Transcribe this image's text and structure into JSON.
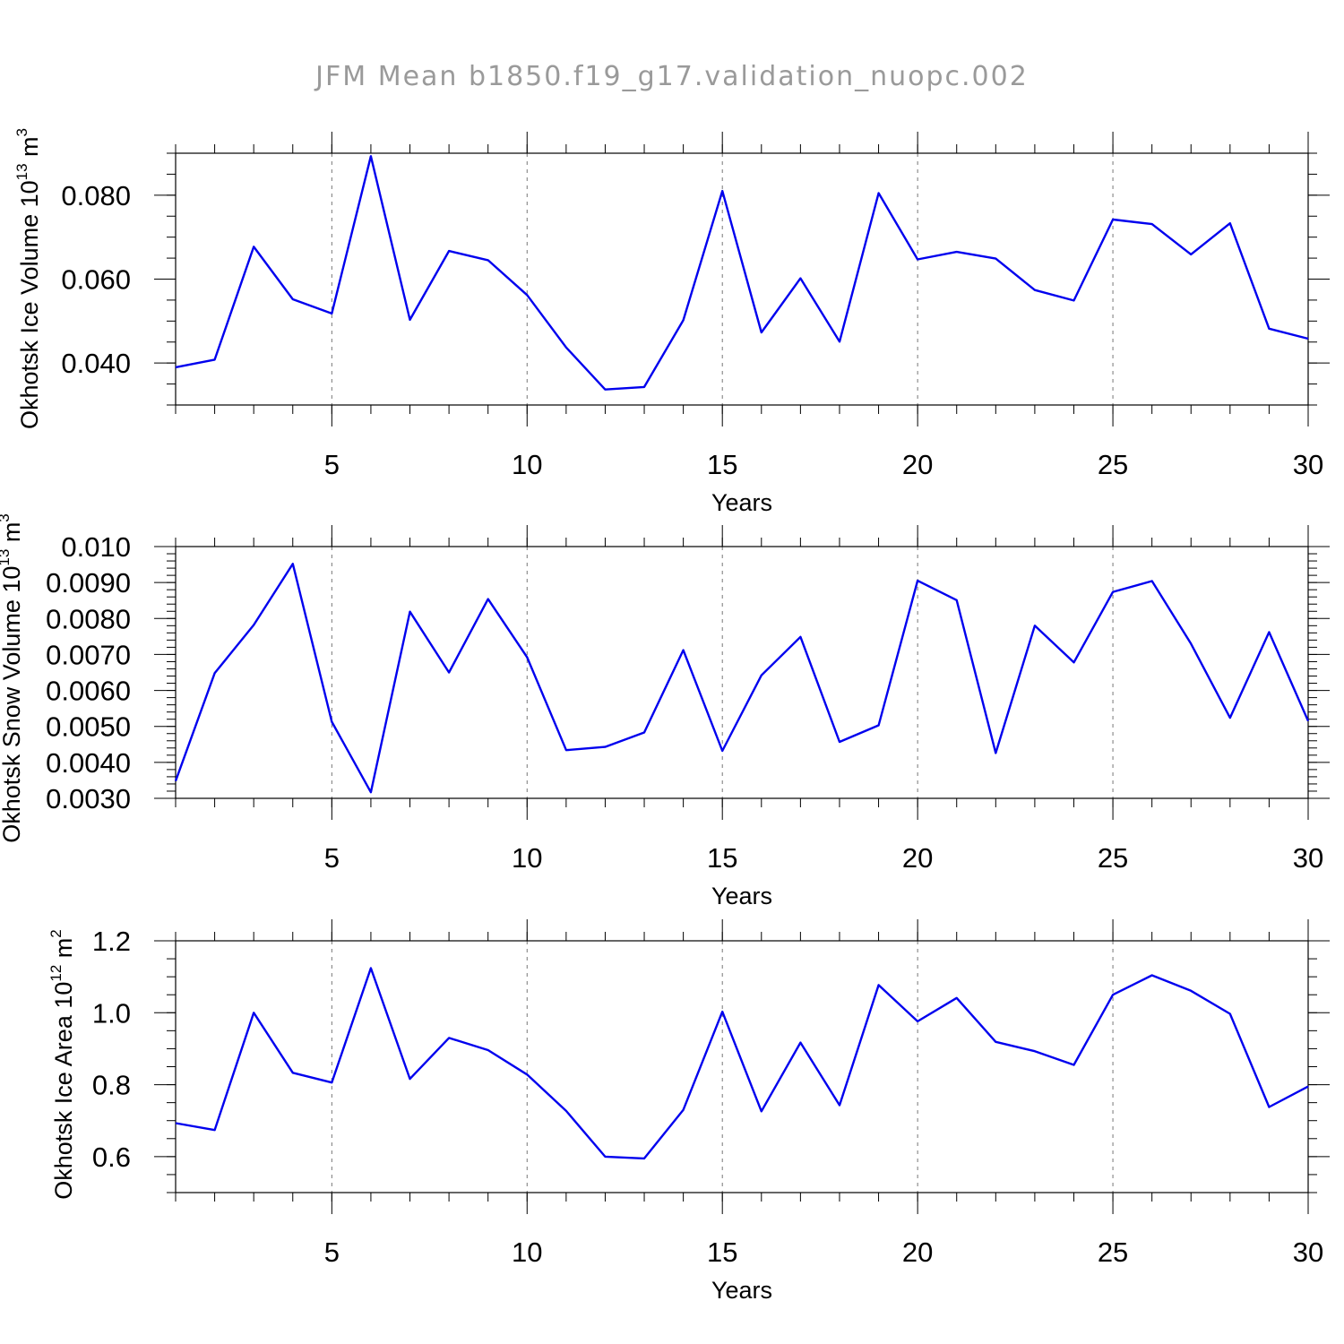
{
  "title": "JFM Mean b1850.f19_g17.validation_nuopc.002",
  "chart_data": [
    {
      "type": "line",
      "ylabel_prefix": "Okhotsk Ice Volume 10",
      "ylabel_exp": "13",
      "ylabel_unit": " m",
      "ylabel_unit_exp": "3",
      "xlabel": "Years",
      "xlim": [
        1,
        30
      ],
      "ylim": [
        0.03,
        0.09
      ],
      "x_ticks": [
        5,
        10,
        15,
        20,
        25,
        30
      ],
      "x_tick_labels": [
        "5",
        "10",
        "15",
        "20",
        "25",
        "30"
      ],
      "y_ticks": [
        0.04,
        0.06,
        0.08
      ],
      "y_tick_labels": [
        "0.040",
        "0.060",
        "0.080"
      ],
      "y_minor_step": 0.005,
      "x": [
        1,
        2,
        3,
        4,
        5,
        6,
        7,
        8,
        9,
        10,
        11,
        12,
        13,
        14,
        15,
        16,
        17,
        18,
        19,
        20,
        21,
        22,
        23,
        24,
        25,
        26,
        27,
        28,
        29,
        30
      ],
      "values": [
        0.039,
        0.0408,
        0.0677,
        0.0552,
        0.0518,
        0.0893,
        0.0503,
        0.0667,
        0.0645,
        0.0562,
        0.0437,
        0.0337,
        0.0343,
        0.0502,
        0.081,
        0.0473,
        0.0602,
        0.0451,
        0.0805,
        0.0647,
        0.0665,
        0.0649,
        0.0574,
        0.0549,
        0.0742,
        0.0731,
        0.0659,
        0.0733,
        0.0482,
        0.0458
      ],
      "line_color": "#0000ee"
    },
    {
      "type": "line",
      "ylabel_prefix": "Okhotsk Snow Volume 10",
      "ylabel_exp": "13",
      "ylabel_unit": " m",
      "ylabel_unit_exp": "3",
      "xlabel": "Years",
      "xlim": [
        1,
        30
      ],
      "ylim": [
        0.003,
        0.01
      ],
      "x_ticks": [
        5,
        10,
        15,
        20,
        25,
        30
      ],
      "x_tick_labels": [
        "5",
        "10",
        "15",
        "20",
        "25",
        "30"
      ],
      "y_ticks": [
        0.003,
        0.004,
        0.005,
        0.006,
        0.007,
        0.008,
        0.009,
        0.01
      ],
      "y_tick_labels": [
        "0.0030",
        "0.0040",
        "0.0050",
        "0.0060",
        "0.0070",
        "0.0080",
        "0.0090",
        "0.010"
      ],
      "y_minor_step": 0.0002,
      "x": [
        1,
        2,
        3,
        4,
        5,
        6,
        7,
        8,
        9,
        10,
        11,
        12,
        13,
        14,
        15,
        16,
        17,
        18,
        19,
        20,
        21,
        22,
        23,
        24,
        25,
        26,
        27,
        28,
        29,
        30
      ],
      "values": [
        0.00348,
        0.00648,
        0.00782,
        0.00952,
        0.00513,
        0.00317,
        0.00819,
        0.0065,
        0.00854,
        0.00692,
        0.00434,
        0.00443,
        0.00483,
        0.00712,
        0.00432,
        0.00642,
        0.00749,
        0.00457,
        0.00503,
        0.00905,
        0.00851,
        0.00426,
        0.0078,
        0.00678,
        0.00874,
        0.00904,
        0.0073,
        0.00524,
        0.00762,
        0.00515
      ],
      "line_color": "#0000ee"
    },
    {
      "type": "line",
      "ylabel_prefix": "Okhotsk Ice Area 10",
      "ylabel_exp": "12",
      "ylabel_unit": " m",
      "ylabel_unit_exp": "2",
      "xlabel": "Years",
      "xlim": [
        1,
        30
      ],
      "ylim": [
        0.5,
        1.2
      ],
      "x_ticks": [
        5,
        10,
        15,
        20,
        25,
        30
      ],
      "x_tick_labels": [
        "5",
        "10",
        "15",
        "20",
        "25",
        "30"
      ],
      "y_ticks": [
        0.6,
        0.8,
        1.0,
        1.2
      ],
      "y_tick_labels": [
        "0.6",
        "0.8",
        "1.0",
        "1.2"
      ],
      "y_minor_step": 0.05,
      "x": [
        1,
        2,
        3,
        4,
        5,
        6,
        7,
        8,
        9,
        10,
        11,
        12,
        13,
        14,
        15,
        16,
        17,
        18,
        19,
        20,
        21,
        22,
        23,
        24,
        25,
        26,
        27,
        28,
        29,
        30
      ],
      "values": [
        0.693,
        0.674,
        1.0,
        0.833,
        0.806,
        1.124,
        0.816,
        0.93,
        0.896,
        0.828,
        0.727,
        0.6,
        0.595,
        0.73,
        1.003,
        0.726,
        0.917,
        0.743,
        1.077,
        0.976,
        1.041,
        0.919,
        0.893,
        0.855,
        1.05,
        1.104,
        1.061,
        0.997,
        0.738,
        0.795
      ],
      "line_color": "#0000ee"
    }
  ]
}
